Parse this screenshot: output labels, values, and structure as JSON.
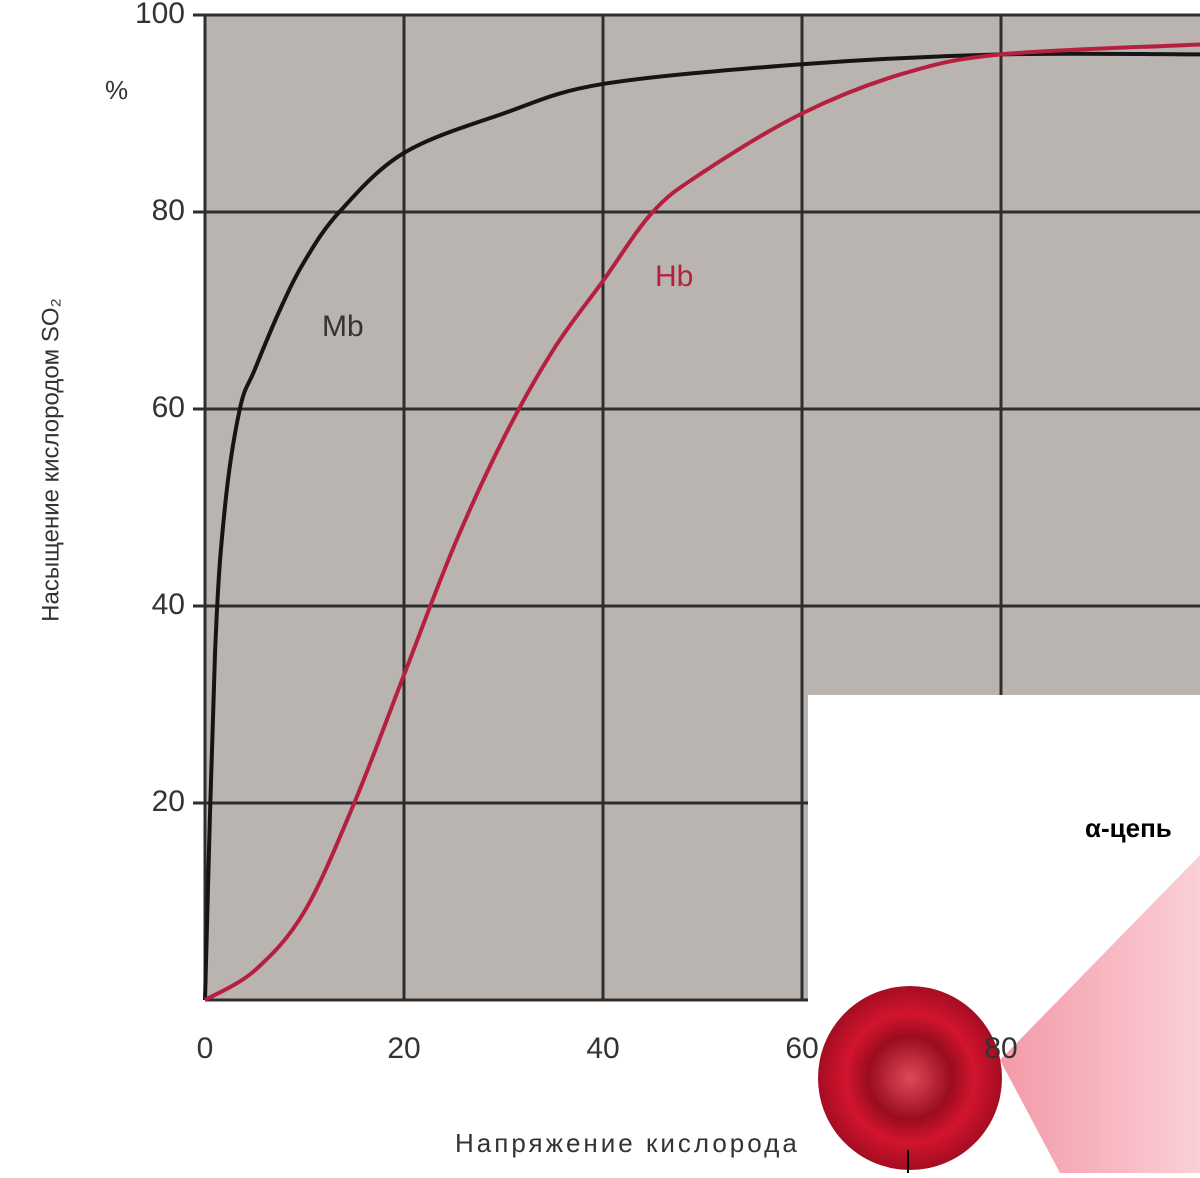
{
  "chart_data": {
    "type": "line",
    "y_axis_label": "Насыщение кислородом SO₂",
    "y_unit": "%",
    "x_axis_label": "Напряжение кислорода",
    "series": [
      {
        "name": "Mb",
        "color": "#151515",
        "x": [
          0,
          1,
          2,
          3.5,
          5,
          7.5,
          10,
          13.5,
          20,
          30,
          40,
          60,
          80,
          100
        ],
        "values": [
          0,
          35,
          50,
          60,
          64,
          70,
          75,
          80,
          86,
          90,
          93,
          95,
          96,
          96
        ]
      },
      {
        "name": "Hb",
        "color": "#b5203f",
        "x": [
          0,
          5,
          10,
          15,
          20,
          25,
          30,
          35,
          40,
          45,
          50,
          60,
          70,
          80,
          100
        ],
        "values": [
          0,
          3,
          9,
          20,
          33,
          46,
          57,
          66,
          73,
          80,
          84,
          90,
          94,
          96,
          97
        ]
      }
    ],
    "xlim": [
      0,
      100
    ],
    "ylim": [
      0,
      100
    ],
    "xticks": [
      0,
      20,
      40,
      60,
      80
    ],
    "yticks": [
      20,
      40,
      60,
      80,
      100
    ],
    "grid": true
  },
  "overlay": {
    "label": "α-цепь"
  }
}
